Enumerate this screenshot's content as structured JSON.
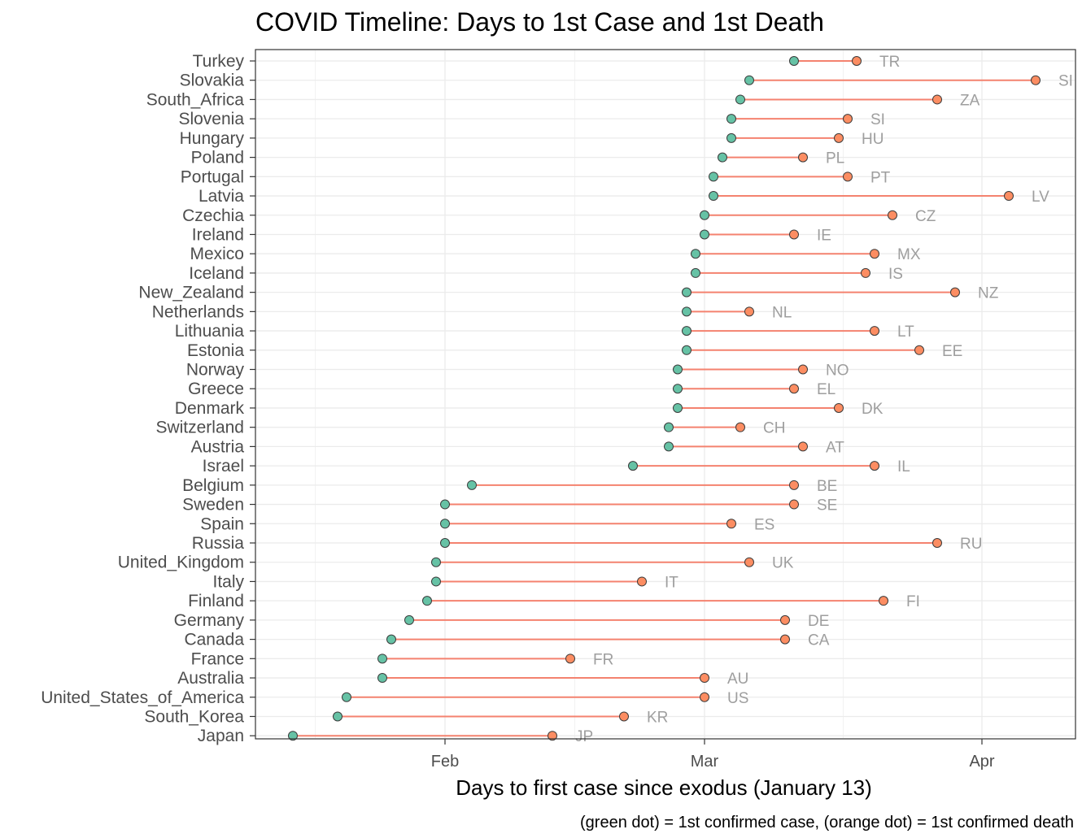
{
  "chart_data": {
    "type": "dumbbell",
    "title": "COVID Timeline: Days to 1st Case and 1st Death",
    "xlabel": "Days to first case since exodus (January 13)",
    "caption": "(green dot) = 1st confirmed case, (orange dot) = 1st confirmed death",
    "x_axis": {
      "type": "date",
      "range": [
        "2020-01-13",
        "2020-04-08"
      ],
      "ticks": [
        {
          "label": "Feb",
          "date": "2020-02-01"
        },
        {
          "label": "Mar",
          "date": "2020-03-01"
        },
        {
          "label": "Apr",
          "date": "2020-04-01"
        }
      ]
    },
    "grid": true,
    "colors": {
      "case": "#66c2a5",
      "death": "#fc8d62",
      "segment": "#f4826f",
      "label": "#9e9e9e"
    },
    "series": [
      {
        "name": "1st confirmed case",
        "key": "first_case"
      },
      {
        "name": "1st confirmed death",
        "key": "first_death"
      }
    ],
    "countries": [
      {
        "name": "Turkey",
        "code": "TR",
        "first_case": "2020-03-11",
        "first_death": "2020-03-18"
      },
      {
        "name": "Slovakia",
        "code": "SI",
        "first_case": "2020-03-06",
        "first_death": "2020-04-07"
      },
      {
        "name": "South_Africa",
        "code": "ZA",
        "first_case": "2020-03-05",
        "first_death": "2020-03-27"
      },
      {
        "name": "Slovenia",
        "code": "SI",
        "first_case": "2020-03-04",
        "first_death": "2020-03-17"
      },
      {
        "name": "Hungary",
        "code": "HU",
        "first_case": "2020-03-04",
        "first_death": "2020-03-16"
      },
      {
        "name": "Poland",
        "code": "PL",
        "first_case": "2020-03-03",
        "first_death": "2020-03-12"
      },
      {
        "name": "Portugal",
        "code": "PT",
        "first_case": "2020-03-02",
        "first_death": "2020-03-17"
      },
      {
        "name": "Latvia",
        "code": "LV",
        "first_case": "2020-03-02",
        "first_death": "2020-04-04"
      },
      {
        "name": "Czechia",
        "code": "CZ",
        "first_case": "2020-03-01",
        "first_death": "2020-03-22"
      },
      {
        "name": "Ireland",
        "code": "IE",
        "first_case": "2020-03-01",
        "first_death": "2020-03-11"
      },
      {
        "name": "Mexico",
        "code": "MX",
        "first_case": "2020-02-29",
        "first_death": "2020-03-20"
      },
      {
        "name": "Iceland",
        "code": "IS",
        "first_case": "2020-02-29",
        "first_death": "2020-03-19"
      },
      {
        "name": "New_Zealand",
        "code": "NZ",
        "first_case": "2020-02-28",
        "first_death": "2020-03-29"
      },
      {
        "name": "Netherlands",
        "code": "NL",
        "first_case": "2020-02-28",
        "first_death": "2020-03-06"
      },
      {
        "name": "Lithuania",
        "code": "LT",
        "first_case": "2020-02-28",
        "first_death": "2020-03-20"
      },
      {
        "name": "Estonia",
        "code": "EE",
        "first_case": "2020-02-28",
        "first_death": "2020-03-25"
      },
      {
        "name": "Norway",
        "code": "NO",
        "first_case": "2020-02-27",
        "first_death": "2020-03-12"
      },
      {
        "name": "Greece",
        "code": "EL",
        "first_case": "2020-02-27",
        "first_death": "2020-03-11"
      },
      {
        "name": "Denmark",
        "code": "DK",
        "first_case": "2020-02-27",
        "first_death": "2020-03-16"
      },
      {
        "name": "Switzerland",
        "code": "CH",
        "first_case": "2020-02-26",
        "first_death": "2020-03-05"
      },
      {
        "name": "Austria",
        "code": "AT",
        "first_case": "2020-02-26",
        "first_death": "2020-03-12"
      },
      {
        "name": "Israel",
        "code": "IL",
        "first_case": "2020-02-22",
        "first_death": "2020-03-20"
      },
      {
        "name": "Belgium",
        "code": "BE",
        "first_case": "2020-02-04",
        "first_death": "2020-03-11"
      },
      {
        "name": "Sweden",
        "code": "SE",
        "first_case": "2020-02-01",
        "first_death": "2020-03-11"
      },
      {
        "name": "Spain",
        "code": "ES",
        "first_case": "2020-02-01",
        "first_death": "2020-03-04"
      },
      {
        "name": "Russia",
        "code": "RU",
        "first_case": "2020-02-01",
        "first_death": "2020-03-27"
      },
      {
        "name": "United_Kingdom",
        "code": "UK",
        "first_case": "2020-01-31",
        "first_death": "2020-03-06"
      },
      {
        "name": "Italy",
        "code": "IT",
        "first_case": "2020-01-31",
        "first_death": "2020-02-23"
      },
      {
        "name": "Finland",
        "code": "FI",
        "first_case": "2020-01-30",
        "first_death": "2020-03-21"
      },
      {
        "name": "Germany",
        "code": "DE",
        "first_case": "2020-01-28",
        "first_death": "2020-03-10"
      },
      {
        "name": "Canada",
        "code": "CA",
        "first_case": "2020-01-26",
        "first_death": "2020-03-10"
      },
      {
        "name": "France",
        "code": "FR",
        "first_case": "2020-01-25",
        "first_death": "2020-02-15"
      },
      {
        "name": "Australia",
        "code": "AU",
        "first_case": "2020-01-25",
        "first_death": "2020-03-01"
      },
      {
        "name": "United_States_of_America",
        "code": "US",
        "first_case": "2020-01-21",
        "first_death": "2020-03-01"
      },
      {
        "name": "South_Korea",
        "code": "KR",
        "first_case": "2020-01-20",
        "first_death": "2020-02-21"
      },
      {
        "name": "Japan",
        "code": "JP",
        "first_case": "2020-01-15",
        "first_death": "2020-02-13"
      }
    ]
  }
}
